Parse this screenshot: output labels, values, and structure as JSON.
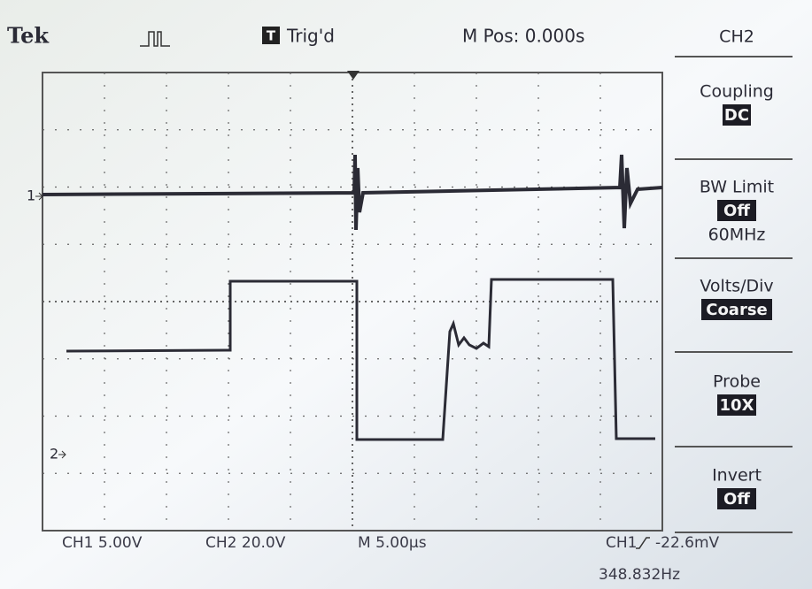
{
  "header": {
    "brand": "Tek",
    "trigger_icon": "T",
    "trigger_status": "Trig'd",
    "position": "M Pos: 0.000s"
  },
  "markers": {
    "ch1": "1",
    "ch2": "2"
  },
  "menu": {
    "title": "CH2",
    "items": [
      {
        "label": "Coupling",
        "value": "DC"
      },
      {
        "label": "BW Limit",
        "value": "Off",
        "note": "60MHz"
      },
      {
        "label": "Volts/Div",
        "value": "Coarse"
      },
      {
        "label": "Probe",
        "value": "10X"
      },
      {
        "label": "Invert",
        "value": "Off"
      }
    ]
  },
  "footer": {
    "ch1_scale": "CH1 5.00V",
    "ch2_scale": "CH2 20.0V",
    "timebase": "M 5.00µs",
    "trigger_source": "CH1",
    "trigger_level": "-22.6mV",
    "frequency": "348.832Hz"
  }
}
